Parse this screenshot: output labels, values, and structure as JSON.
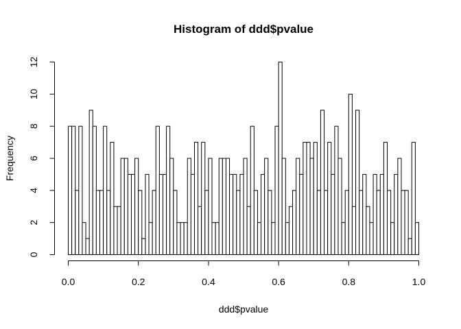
{
  "chart_data": {
    "type": "bar",
    "title": "Histogram of ddd$pvalue",
    "xlabel": "ddd$pvalue",
    "ylabel": "Frequency",
    "xlim": [
      0,
      1
    ],
    "ylim": [
      0,
      12
    ],
    "bin_width": 0.01,
    "x_ticks": [
      "0.0",
      "0.2",
      "0.4",
      "0.6",
      "0.8",
      "1.0"
    ],
    "y_ticks": [
      "0",
      "2",
      "4",
      "6",
      "8",
      "10",
      "12"
    ],
    "grid": false,
    "values": [
      8,
      8,
      4,
      8,
      2,
      1,
      9,
      8,
      4,
      4,
      8,
      4,
      7,
      3,
      3,
      6,
      6,
      5,
      5,
      6,
      4,
      1,
      5,
      2,
      4,
      8,
      5,
      5,
      8,
      6,
      4,
      2,
      2,
      2,
      6,
      5,
      7,
      3,
      7,
      4,
      6,
      2,
      2,
      6,
      6,
      6,
      5,
      5,
      4,
      5,
      6,
      3,
      8,
      4,
      2,
      5,
      6,
      4,
      2,
      8,
      12,
      6,
      2,
      3,
      4,
      6,
      5,
      7,
      7,
      6,
      7,
      4,
      9,
      4,
      7,
      5,
      8,
      6,
      2,
      4,
      10,
      3,
      9,
      4,
      5,
      3,
      2,
      5,
      4,
      5,
      7,
      4,
      2,
      5,
      6,
      4,
      4,
      1,
      7,
      2
    ]
  }
}
